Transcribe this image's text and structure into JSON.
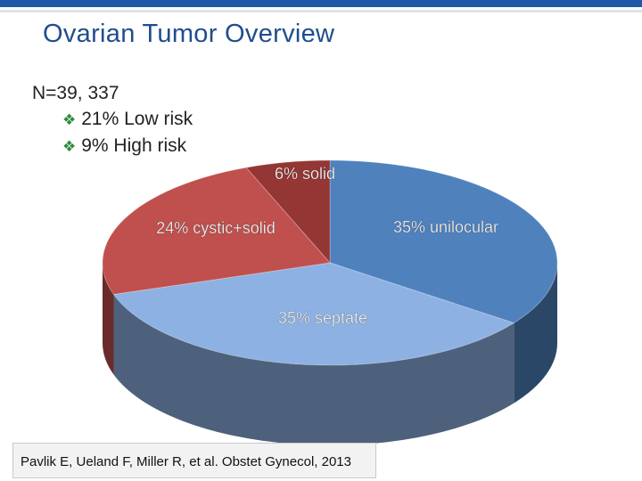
{
  "slide": {
    "title": "Ovarian Tumor Overview",
    "summary": {
      "n_label": "N=39, 337",
      "bullets": [
        {
          "icon": "diamond-arrow-icon",
          "text": "21% Low risk"
        },
        {
          "icon": "diamond-arrow-icon",
          "text": "9%   High risk"
        }
      ]
    },
    "citation": "Pavlik E, Ueland F, Miller R, et al. Obstet Gynecol, 2013"
  },
  "chart_data": {
    "type": "pie",
    "style": "3d",
    "title": "",
    "series": [
      {
        "label": "35% unilocular",
        "value": 35,
        "color": "#4f81bd"
      },
      {
        "label": "35% septate",
        "value": 35,
        "color": "#8db1e2"
      },
      {
        "label": "24% cystic+solid",
        "value": 24,
        "color": "#c0504d"
      },
      {
        "label": "6% solid",
        "value": 6,
        "color": "#943634"
      }
    ],
    "legend": "none"
  }
}
